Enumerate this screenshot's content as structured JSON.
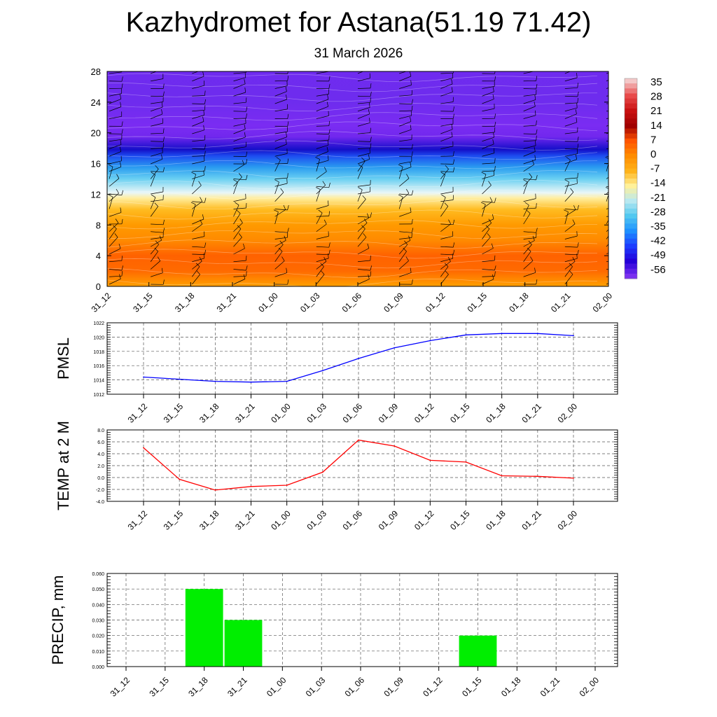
{
  "title": "Kazhydromet for Astana(51.19 71.42)",
  "subtitle": "31 March 2026",
  "time_labels": [
    "31_12",
    "31_15",
    "31_18",
    "31_21",
    "01_00",
    "01_03",
    "01_06",
    "01_09",
    "01_12",
    "01_15",
    "01_18",
    "01_21",
    "02_00"
  ],
  "chart_data": [
    {
      "type": "heatmap",
      "name": "temperature cross-section with wind barbs",
      "x": [
        "31_12",
        "31_15",
        "31_18",
        "31_21",
        "01_00",
        "01_03",
        "01_06",
        "01_09",
        "01_12",
        "01_15",
        "01_18",
        "01_21",
        "02_00"
      ],
      "ylim": [
        0,
        28
      ],
      "yticks": [
        0,
        4,
        8,
        12,
        16,
        20,
        24,
        28
      ],
      "colorbar_labels": [
        "35",
        "28",
        "21",
        "14",
        "7",
        "0",
        "-7",
        "-14",
        "-21",
        "-28",
        "-35",
        "-42",
        "-49",
        "-56"
      ],
      "colorbar_colors": [
        "#f4c8c8",
        "#e84a4a",
        "#c81010",
        "#a00000",
        "#ff5500",
        "#ff8c00",
        "#ffb31a",
        "#fff19a",
        "#b8e8f0",
        "#52c8f0",
        "#1e90ff",
        "#1c3dff",
        "#2400d8",
        "#7a30f0"
      ],
      "profile_levels": [
        0,
        2,
        4,
        6,
        8,
        10,
        11.5,
        12.2,
        13,
        14,
        15.5,
        17,
        17.8,
        18.5,
        19.5,
        21,
        24,
        28
      ],
      "profile_colors": [
        "#ffa000",
        "#ff6a00",
        "#ff6200",
        "#ff8a00",
        "#ff9a00",
        "#ffbb20",
        "#ffeea0",
        "#e8f6f8",
        "#b4e6f4",
        "#6ad0f2",
        "#2a9cf0",
        "#1d4cf0",
        "#1410c8",
        "#3a18d8",
        "#7228ee",
        "#7a2cf2",
        "#6e2cee",
        "#6f2bef"
      ]
    },
    {
      "type": "line",
      "ylabel": "PMSL",
      "x": [
        "31_12",
        "31_15",
        "31_18",
        "31_21",
        "01_00",
        "01_03",
        "01_06",
        "01_09",
        "01_12",
        "01_15",
        "01_18",
        "01_21",
        "02_00"
      ],
      "values": [
        1014.4,
        1014.1,
        1013.8,
        1013.7,
        1013.8,
        1015.3,
        1017.0,
        1018.5,
        1019.5,
        1020.3,
        1020.5,
        1020.5,
        1020.2
      ],
      "ylim": [
        1012,
        1022
      ],
      "yticks": [
        "1012",
        "1014",
        "1016",
        "1018",
        "1020",
        "1022"
      ],
      "color": "#0000ff"
    },
    {
      "type": "line",
      "ylabel": "TEMP at 2 M",
      "x": [
        "31_12",
        "31_15",
        "31_18",
        "31_21",
        "01_00",
        "01_03",
        "01_06",
        "01_09",
        "01_12",
        "01_15",
        "01_18",
        "01_21",
        "02_00"
      ],
      "values": [
        5.0,
        -0.3,
        -2.1,
        -1.5,
        -1.3,
        0.9,
        6.3,
        5.3,
        2.9,
        2.6,
        0.3,
        0.2,
        -0.1
      ],
      "ylim": [
        -4,
        8
      ],
      "yticks": [
        "-4.0",
        "-2.0",
        "0.0",
        "2.0",
        "4.0",
        "6.0",
        "8.0"
      ],
      "color": "#ff0000"
    },
    {
      "type": "bar",
      "ylabel": "PRECIP, mm",
      "categories": [
        "31_12",
        "31_15",
        "31_18",
        "31_21",
        "01_00",
        "01_03",
        "01_06",
        "01_09",
        "01_12",
        "01_15",
        "01_18",
        "01_21",
        "02_00"
      ],
      "values": [
        0,
        0,
        0.05,
        0.03,
        0,
        0,
        0,
        0,
        0,
        0.02,
        0,
        0,
        0
      ],
      "ylim": [
        0,
        0.06
      ],
      "yticks": [
        "0.000",
        "0.010",
        "0.020",
        "0.030",
        "0.040",
        "0.050",
        "0.060"
      ],
      "color": "#00ee00"
    }
  ]
}
